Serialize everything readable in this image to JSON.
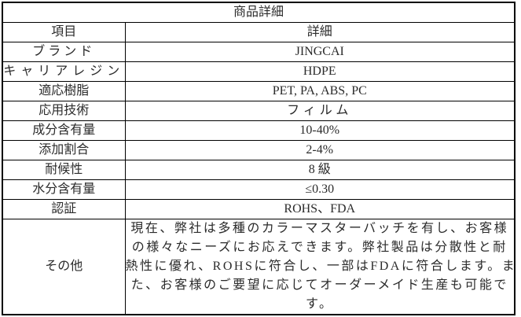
{
  "table": {
    "title": "商品詳細",
    "header": {
      "item": "項目",
      "detail": "詳細"
    },
    "rows": [
      {
        "label": "ブランド",
        "value": "JINGCAI"
      },
      {
        "label": "キャリアレジン",
        "value": "HDPE"
      },
      {
        "label": "適応樹脂",
        "value": "PET, PA, ABS, PC"
      },
      {
        "label": "応用技術",
        "value": "フィルム"
      },
      {
        "label": "成分含有量",
        "value": "10-40%"
      },
      {
        "label": "添加割合",
        "value": "2-4%"
      },
      {
        "label": "耐候性",
        "value": "8 級"
      },
      {
        "label": "水分含有量",
        "value": "≤0.30"
      },
      {
        "label": "認証",
        "value": "ROHS、FDA"
      }
    ],
    "other": {
      "label": "その他",
      "lines": [
        "現在、弊社は多種のカラーマスターバッチを有し、お客様",
        "の様々なニーズにお応えできます。弊社製品は分散性と耐",
        "熱性に優れ、ROHSに符合し、一部はFDAに符合します。ま",
        "た、お客様のご要望に応じてオーダーメイド生産も可能で",
        "す。"
      ]
    }
  },
  "colors": {
    "border": "#000000",
    "text": "#2b2b2b",
    "background": "#ffffff"
  }
}
